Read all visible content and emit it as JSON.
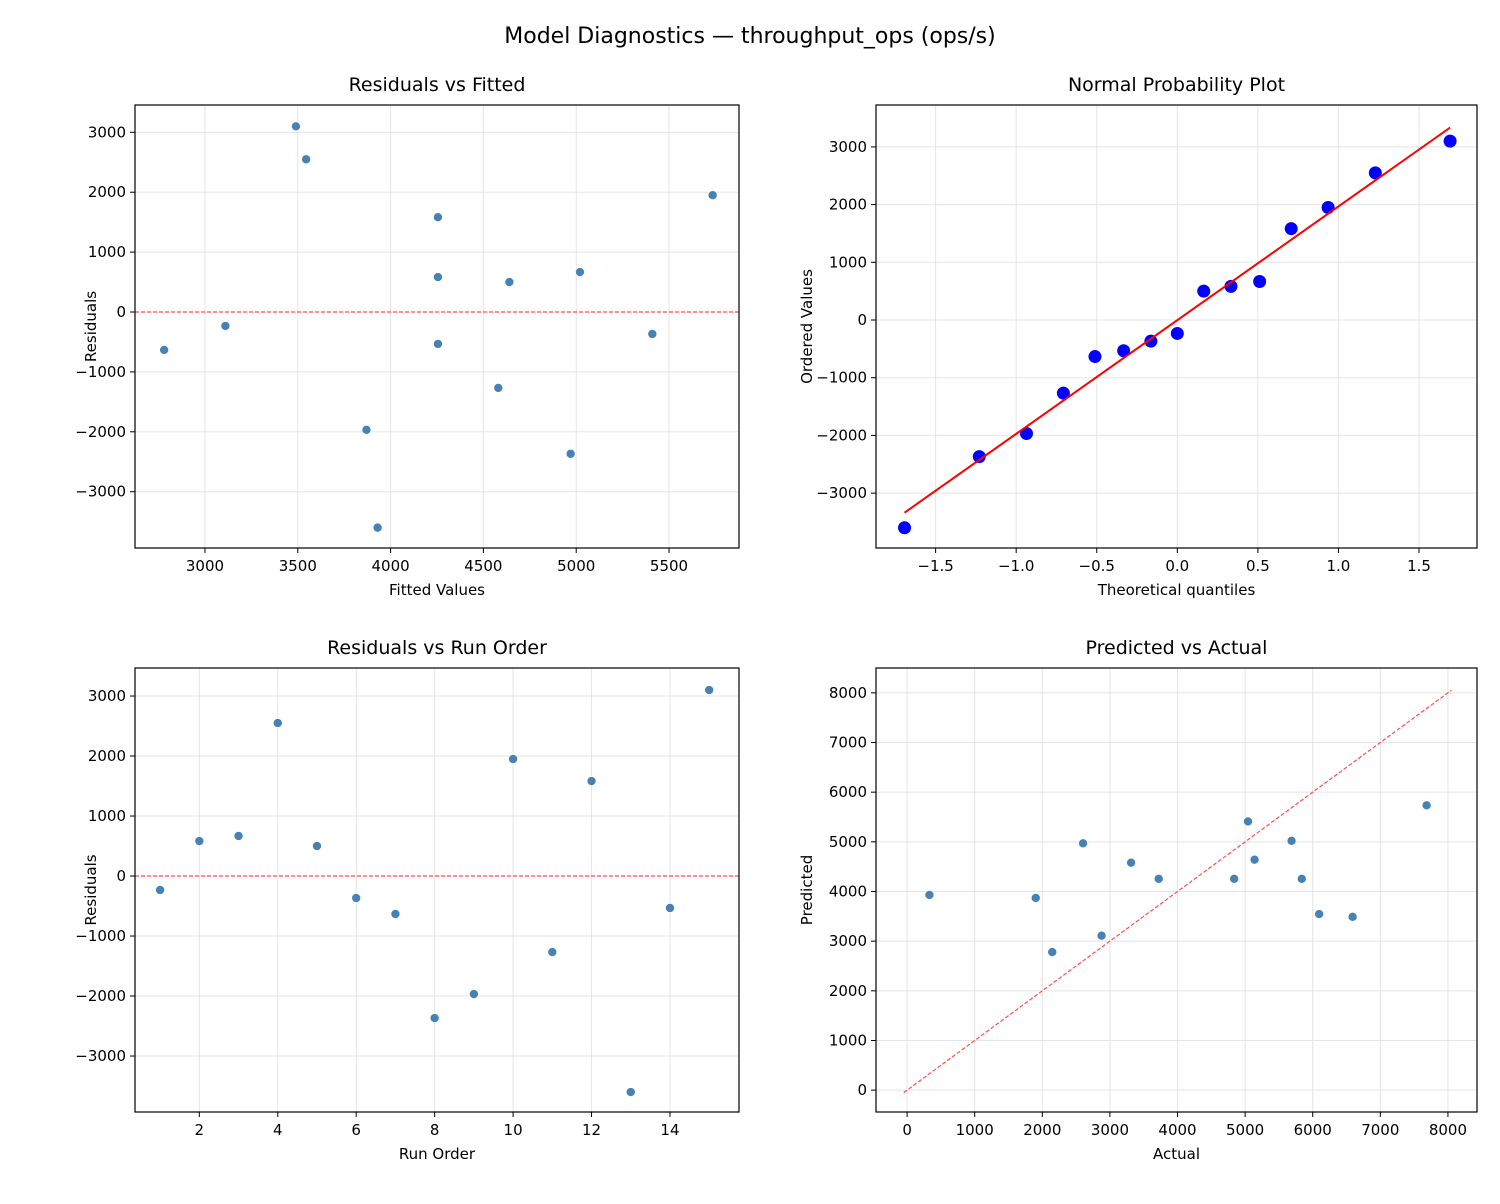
{
  "figure_title": "Model Diagnostics — throughput_ops (ops/s)",
  "colors": {
    "point": "#4682b4",
    "qq_point": "#0000ff",
    "fit_line": "#ff0000",
    "reference_line": "#ff4d4d",
    "grid": "#e5e5e5"
  },
  "chart_data": [
    {
      "id": "residuals-vs-fitted",
      "type": "scatter",
      "title": "Residuals vs Fitted",
      "xlabel": "Fitted Values",
      "ylabel": "Residuals",
      "xlim": [
        2623,
        5877
      ],
      "ylim": [
        -3940,
        3456
      ],
      "xticks": [
        3000,
        3500,
        4000,
        4500,
        5000,
        5500
      ],
      "yticks": [
        -3000,
        -2000,
        -1000,
        0,
        1000,
        2000,
        3000
      ],
      "grid": true,
      "x": [
        3110,
        4255,
        5020,
        3545,
        4640,
        5410,
        2780,
        4970,
        3870,
        5735,
        4580,
        4255,
        3930,
        4255,
        3490
      ],
      "y": [
        -233,
        583,
        667,
        2550,
        500,
        -367,
        -633,
        -2367,
        -1967,
        1950,
        -1267,
        1583,
        -3600,
        -533,
        3100
      ],
      "reference_hline": 0
    },
    {
      "id": "normal-probability-plot",
      "type": "scatter",
      "title": "Normal Probability Plot",
      "xlabel": "Theoretical quantiles",
      "ylabel": "Ordered Values",
      "xlim": [
        -1.87,
        1.86
      ],
      "ylim": [
        -3951,
        3726
      ],
      "xticks": [
        -1.5,
        -1.0,
        -0.5,
        0.0,
        0.5,
        1.0,
        1.5
      ],
      "yticks": [
        -3000,
        -2000,
        -1000,
        0,
        1000,
        2000,
        3000
      ],
      "grid": true,
      "x": [
        -1.693,
        -1.229,
        -0.936,
        -0.707,
        -0.511,
        -0.333,
        -0.164,
        0.0,
        0.164,
        0.333,
        0.511,
        0.707,
        0.936,
        1.229,
        1.693
      ],
      "y": [
        -3600,
        -2367,
        -1967,
        -1267,
        -633,
        -533,
        -367,
        -233,
        500,
        583,
        667,
        1583,
        1950,
        2550,
        3100
      ],
      "fit_line": "least-squares"
    },
    {
      "id": "residuals-vs-run-order",
      "type": "scatter",
      "title": "Residuals vs Run Order",
      "xlabel": "Run Order",
      "ylabel": "Residuals",
      "xlim": [
        0.36,
        15.76
      ],
      "ylim": [
        -3933,
        3467
      ],
      "xticks": [
        2,
        4,
        6,
        8,
        10,
        12,
        14
      ],
      "yticks": [
        -3000,
        -2000,
        -1000,
        0,
        1000,
        2000,
        3000
      ],
      "grid": true,
      "x": [
        1,
        2,
        3,
        4,
        5,
        6,
        7,
        8,
        9,
        10,
        11,
        12,
        13,
        14,
        15
      ],
      "y": [
        -233,
        583,
        667,
        2550,
        500,
        -367,
        -633,
        -2367,
        -1967,
        1950,
        -1267,
        1583,
        -3600,
        -533,
        3100
      ],
      "reference_hline": 0
    },
    {
      "id": "predicted-vs-actual",
      "type": "scatter",
      "title": "Predicted vs Actual",
      "xlabel": "Actual",
      "ylabel": "Predicted",
      "xlim": [
        -460,
        8430
      ],
      "ylim": [
        -440,
        8500
      ],
      "xticks": [
        0,
        1000,
        2000,
        3000,
        4000,
        5000,
        6000,
        7000,
        8000
      ],
      "yticks": [
        0,
        1000,
        2000,
        3000,
        4000,
        5000,
        6000,
        7000,
        8000
      ],
      "grid": true,
      "x": [
        2877,
        4838,
        5687,
        6095,
        5140,
        5043,
        2147,
        2603,
        1903,
        7685,
        3313,
        5838,
        330,
        3722,
        6590
      ],
      "y": [
        3110,
        4255,
        5020,
        3545,
        4640,
        5410,
        2780,
        4970,
        3870,
        5735,
        4580,
        4255,
        3930,
        4255,
        3490
      ],
      "identity_line": [
        -50,
        8050
      ]
    }
  ]
}
